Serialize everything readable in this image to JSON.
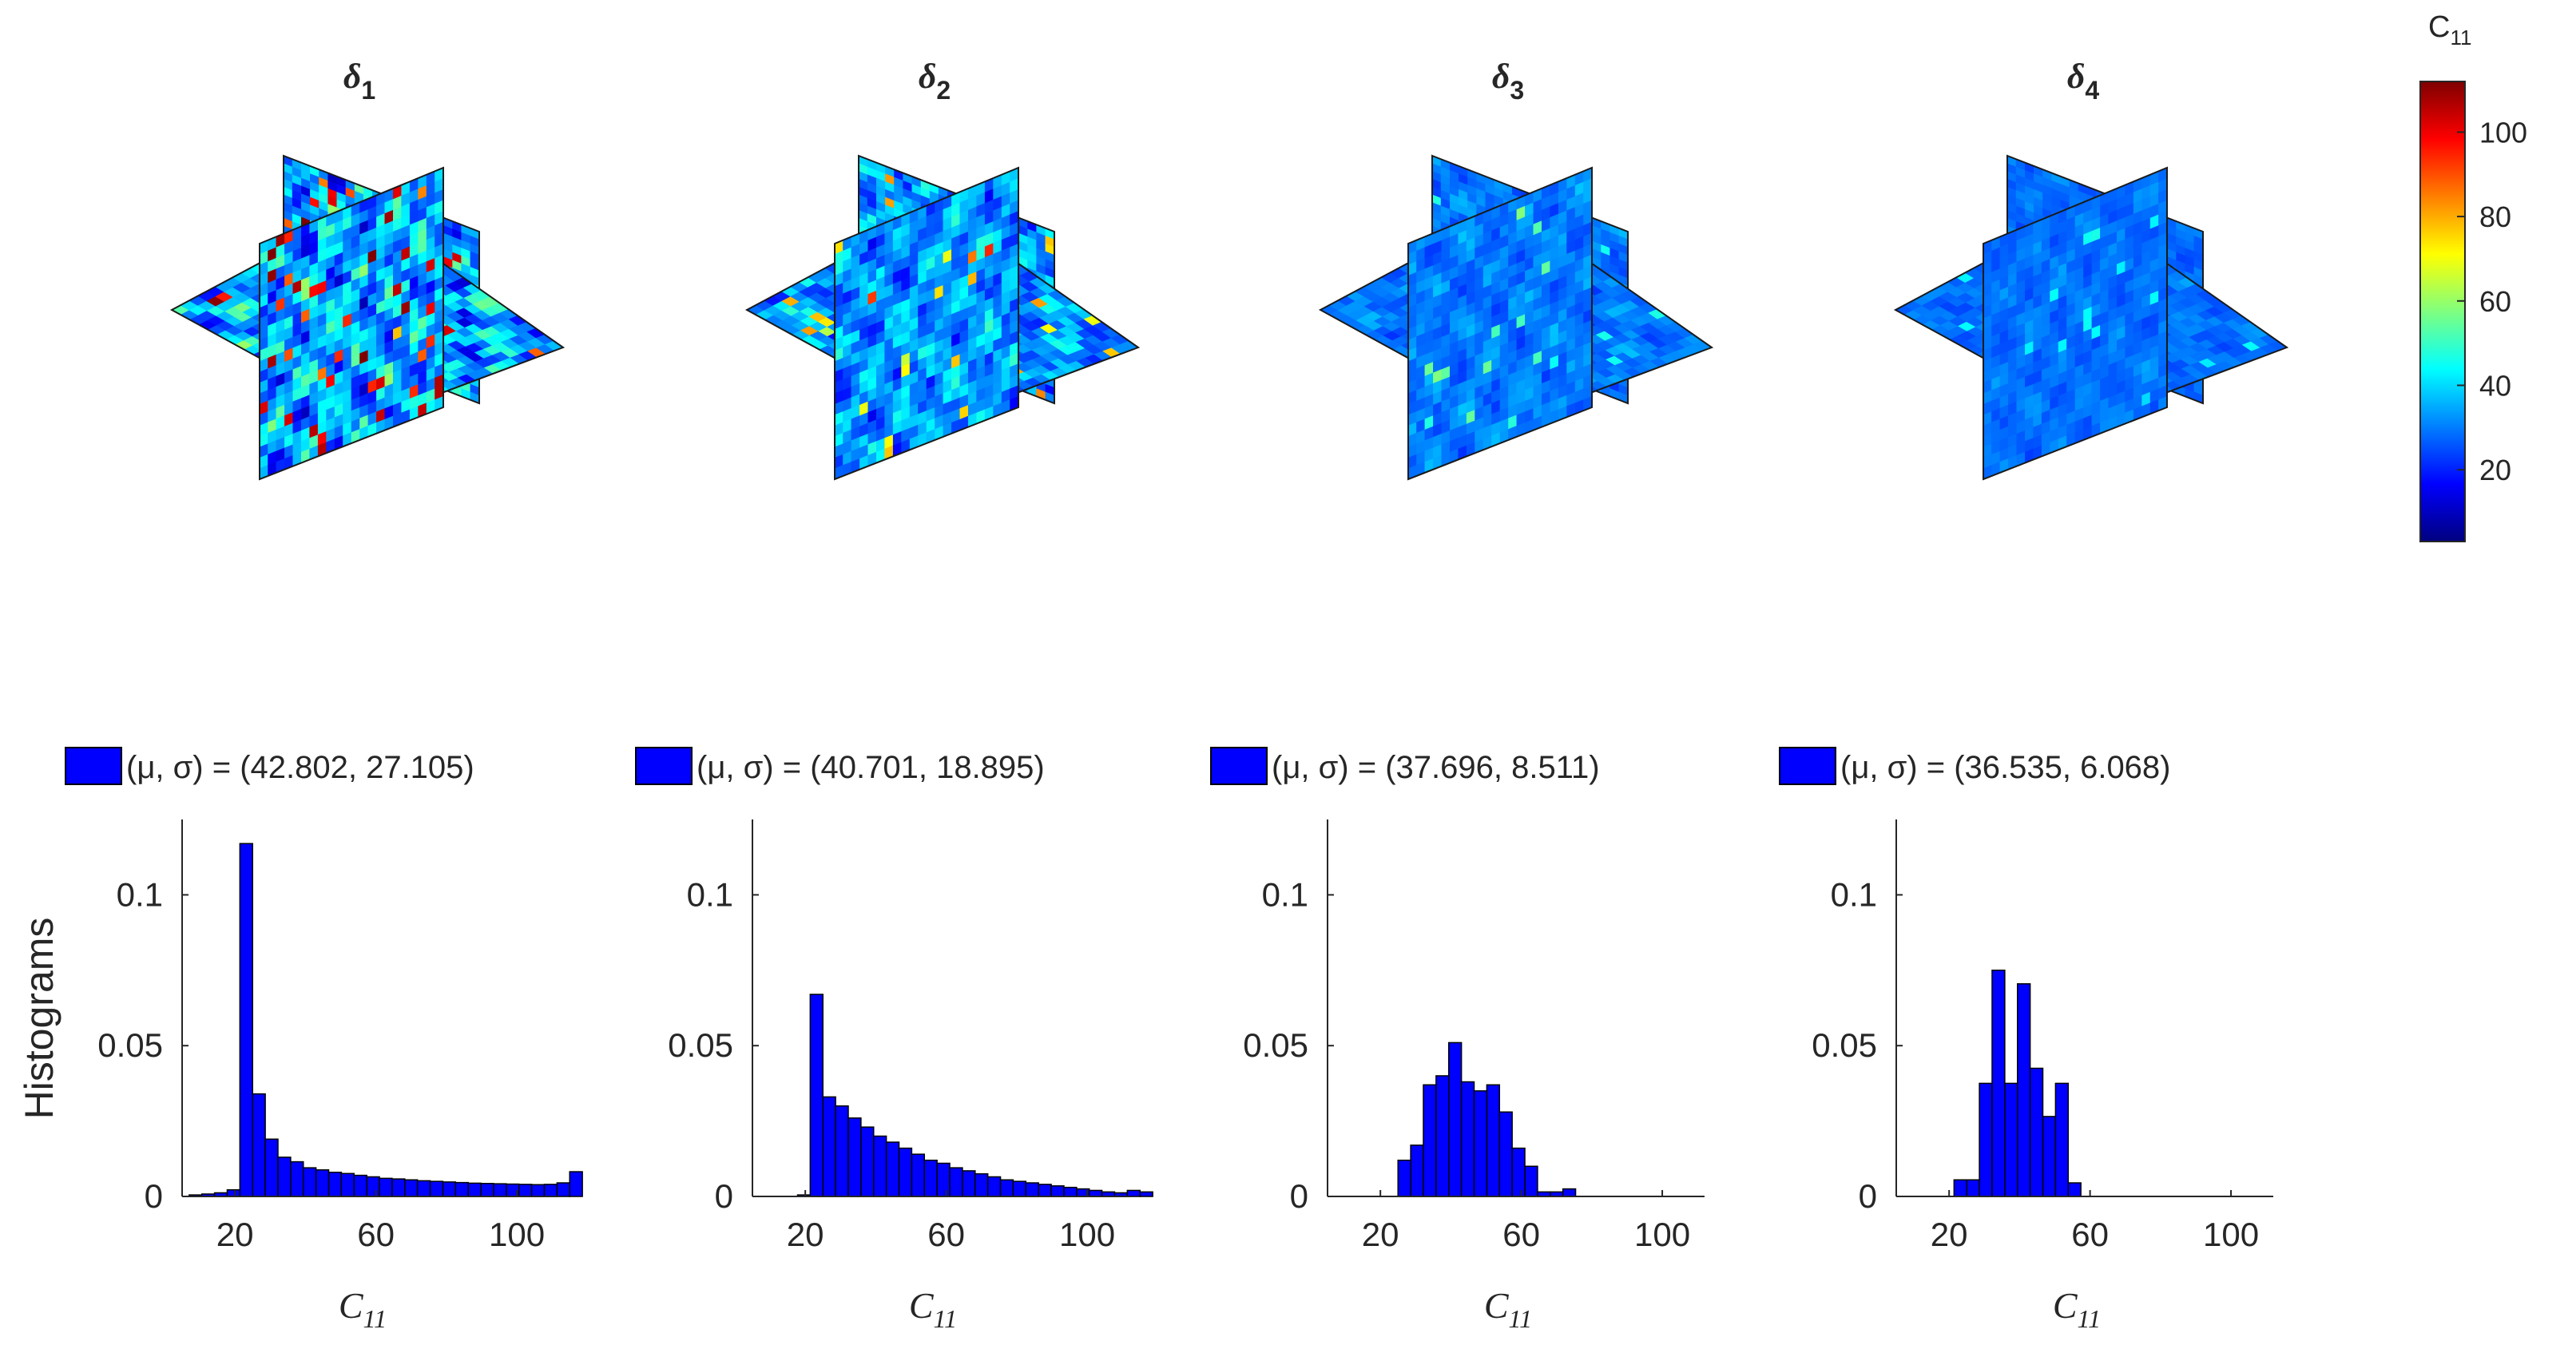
{
  "colors": {
    "bar_fill": "#0000ff",
    "bar_edge": "#000000",
    "axis": "#262626",
    "colormap": [
      "#00007f",
      "#0000ff",
      "#007fff",
      "#00ffff",
      "#7fff7f",
      "#ffff00",
      "#ff7f00",
      "#ff0000",
      "#7f0000"
    ]
  },
  "colorbar": {
    "label_base": "C",
    "label_sub": "11",
    "ticks": [
      "100",
      "80",
      "60",
      "40",
      "20"
    ],
    "tick_values": [
      100,
      80,
      60,
      40,
      20
    ],
    "range": [
      3,
      112
    ],
    "colormap_name": "jet"
  },
  "slices": [
    {
      "sym": "δ",
      "sub": "1",
      "mean_level": 42.8,
      "spread": 27.1
    },
    {
      "sym": "δ",
      "sub": "2",
      "mean_level": 40.7,
      "spread": 18.9
    },
    {
      "sym": "δ",
      "sub": "3",
      "mean_level": 37.7,
      "spread": 8.5
    },
    {
      "sym": "δ",
      "sub": "4",
      "mean_level": 36.5,
      "spread": 6.1
    }
  ],
  "chart_data": {
    "type": "bar",
    "ylabel": "Histograms",
    "xlabel_base": "C",
    "xlabel_sub": "11",
    "xlim": [
      5,
      112
    ],
    "ylim": [
      0,
      0.125
    ],
    "yticks": [
      0,
      0.05,
      0.1
    ],
    "ytick_labels": [
      "0",
      "0.05",
      "0.1"
    ],
    "xticks": [
      20,
      60,
      100
    ],
    "xtick_labels": [
      "20",
      "60",
      "100"
    ],
    "bin_edges_start": 7,
    "bin_width": 3.6,
    "panels": [
      {
        "legend": "(μ, σ) = (42.802, 27.105)",
        "values": [
          0.0005,
          0.0008,
          0.0012,
          0.0022,
          0.117,
          0.034,
          0.019,
          0.013,
          0.0115,
          0.0095,
          0.0088,
          0.008,
          0.0076,
          0.007,
          0.0065,
          0.006,
          0.0058,
          0.0055,
          0.0052,
          0.005,
          0.0048,
          0.0046,
          0.0044,
          0.0043,
          0.0042,
          0.0041,
          0.004,
          0.0039,
          0.004,
          0.0045,
          0.0082
        ]
      },
      {
        "legend": "(μ, σ) = (40.701, 18.895)",
        "values": [
          0,
          0,
          0,
          0.0005,
          0.067,
          0.033,
          0.03,
          0.026,
          0.023,
          0.02,
          0.018,
          0.016,
          0.014,
          0.012,
          0.011,
          0.0095,
          0.0085,
          0.0075,
          0.0065,
          0.0055,
          0.005,
          0.0045,
          0.004,
          0.0035,
          0.003,
          0.0025,
          0.002,
          0.0015,
          0.0012,
          0.002,
          0.0015
        ]
      },
      {
        "legend": "(μ, σ) = (37.696, 8.511)",
        "values": [
          0,
          0,
          0,
          0,
          0,
          0.012,
          0.017,
          0.037,
          0.04,
          0.051,
          0.038,
          0.035,
          0.037,
          0.028,
          0.016,
          0.01,
          0.0015,
          0.0015,
          0.0025,
          0,
          0,
          0,
          0,
          0,
          0,
          0,
          0,
          0,
          0,
          0,
          0
        ]
      },
      {
        "legend": "(μ, σ) = (36.535, 6.068)",
        "values": [
          0,
          0,
          0,
          0,
          0.0055,
          0.0055,
          0.0375,
          0.075,
          0.0375,
          0.0705,
          0.0425,
          0.0265,
          0.0375,
          0.0045,
          0,
          0,
          0,
          0,
          0,
          0,
          0,
          0,
          0,
          0,
          0,
          0,
          0,
          0,
          0,
          0,
          0
        ]
      }
    ]
  }
}
